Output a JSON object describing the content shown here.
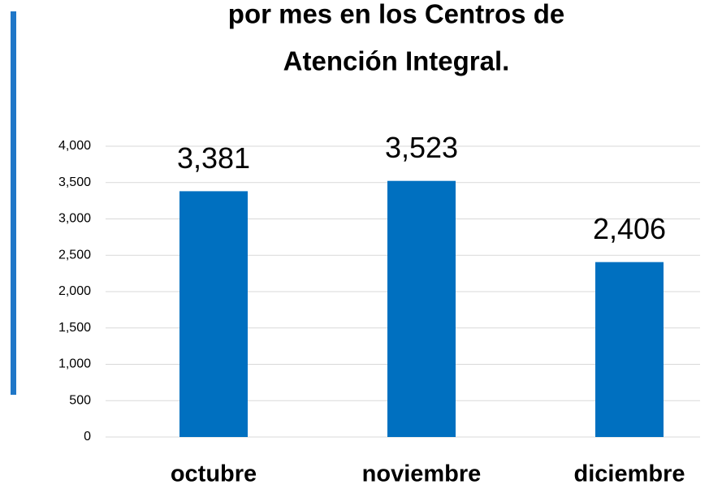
{
  "chart_data": {
    "type": "bar",
    "title_lines": [
      "por mes en los Centros de",
      "Atención Integral."
    ],
    "categories": [
      "octubre",
      "noviembre",
      "diciembre"
    ],
    "values": [
      3381,
      3523,
      2406
    ],
    "value_labels": [
      "3,381",
      "3,523",
      "2,406"
    ],
    "color": "#0070c0",
    "ylim": [
      0,
      4000
    ],
    "yticks": [
      0,
      500,
      {
        "value": 1000,
        "label": "1,000"
      },
      {
        "value": 1500,
        "label": "1,500"
      },
      {
        "value": 2000,
        "label": "2,000"
      },
      {
        "value": 2500,
        "label": "2,500"
      },
      {
        "value": 3000,
        "label": "3,000"
      },
      {
        "value": 3500,
        "label": "3,500"
      },
      {
        "value": 4000,
        "label": "4,000"
      }
    ],
    "grid": true
  }
}
